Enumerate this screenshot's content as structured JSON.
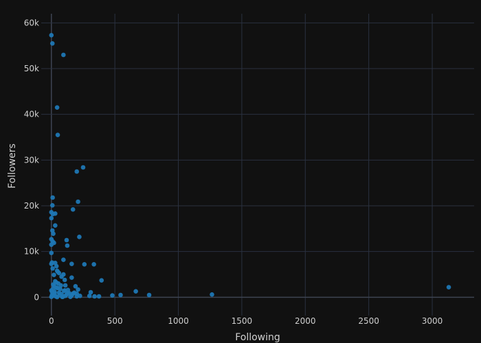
{
  "chart_data": {
    "type": "scatter",
    "xlabel": "Following",
    "ylabel": "Followers",
    "xlim": [
      -80,
      3330
    ],
    "ylim": [
      -4000,
      62000
    ],
    "x_ticks": [
      0,
      500,
      1000,
      1500,
      2000,
      2500,
      3000
    ],
    "x_tick_labels": [
      "0",
      "500",
      "1000",
      "1500",
      "2000",
      "2500",
      "3000"
    ],
    "y_ticks": [
      0,
      10000,
      20000,
      30000,
      40000,
      50000,
      60000
    ],
    "y_tick_labels": [
      "0",
      "10k",
      "20k",
      "30k",
      "40k",
      "50k",
      "60k"
    ],
    "grid": true,
    "marker_color": "#1f77b4",
    "background_color": "#111111",
    "series": [
      {
        "x": [
          0,
          8,
          95,
          45,
          50,
          200,
          250,
          10,
          210,
          170,
          8,
          0,
          12,
          30,
          0,
          30,
          8,
          15,
          220,
          0,
          10,
          20,
          120,
          125,
          0,
          95,
          5,
          0,
          30,
          160,
          260,
          335,
          40,
          10,
          45,
          50,
          60,
          95,
          395,
          105,
          160,
          80,
          40,
          15,
          110,
          190,
          15,
          210,
          0,
          5,
          60,
          130,
          200,
          310,
          665,
          770,
          1265,
          3130,
          480,
          545,
          300,
          375,
          340,
          225,
          160,
          120,
          80,
          140,
          180,
          20,
          55,
          70,
          100,
          25,
          5,
          10,
          35,
          150,
          90,
          45,
          0,
          15,
          25,
          200,
          65,
          110,
          85,
          130,
          170,
          50,
          30,
          0,
          20,
          40,
          75,
          105
        ],
        "y": [
          57300,
          55500,
          53000,
          41500,
          35500,
          27500,
          28400,
          21800,
          20900,
          19200,
          20100,
          18600,
          18200,
          18300,
          17300,
          15700,
          14600,
          13900,
          13200,
          12700,
          12200,
          11900,
          12500,
          11300,
          11500,
          8200,
          7600,
          7300,
          7500,
          7300,
          7200,
          7200,
          6800,
          6300,
          5800,
          5600,
          5300,
          5000,
          3700,
          3800,
          4300,
          4500,
          3200,
          2800,
          2600,
          2400,
          1900,
          1700,
          1500,
          1200,
          1000,
          900,
          800,
          1100,
          1300,
          500,
          600,
          2200,
          400,
          500,
          300,
          200,
          200,
          300,
          400,
          600,
          700,
          900,
          1000,
          2500,
          3000,
          1800,
          1400,
          800,
          500,
          300,
          200,
          100,
          100,
          50,
          100,
          600,
          1200,
          200,
          500,
          300,
          100,
          1600,
          800,
          2000,
          3500,
          9700,
          4900,
          2100,
          2600,
          1500
        ]
      }
    ]
  }
}
